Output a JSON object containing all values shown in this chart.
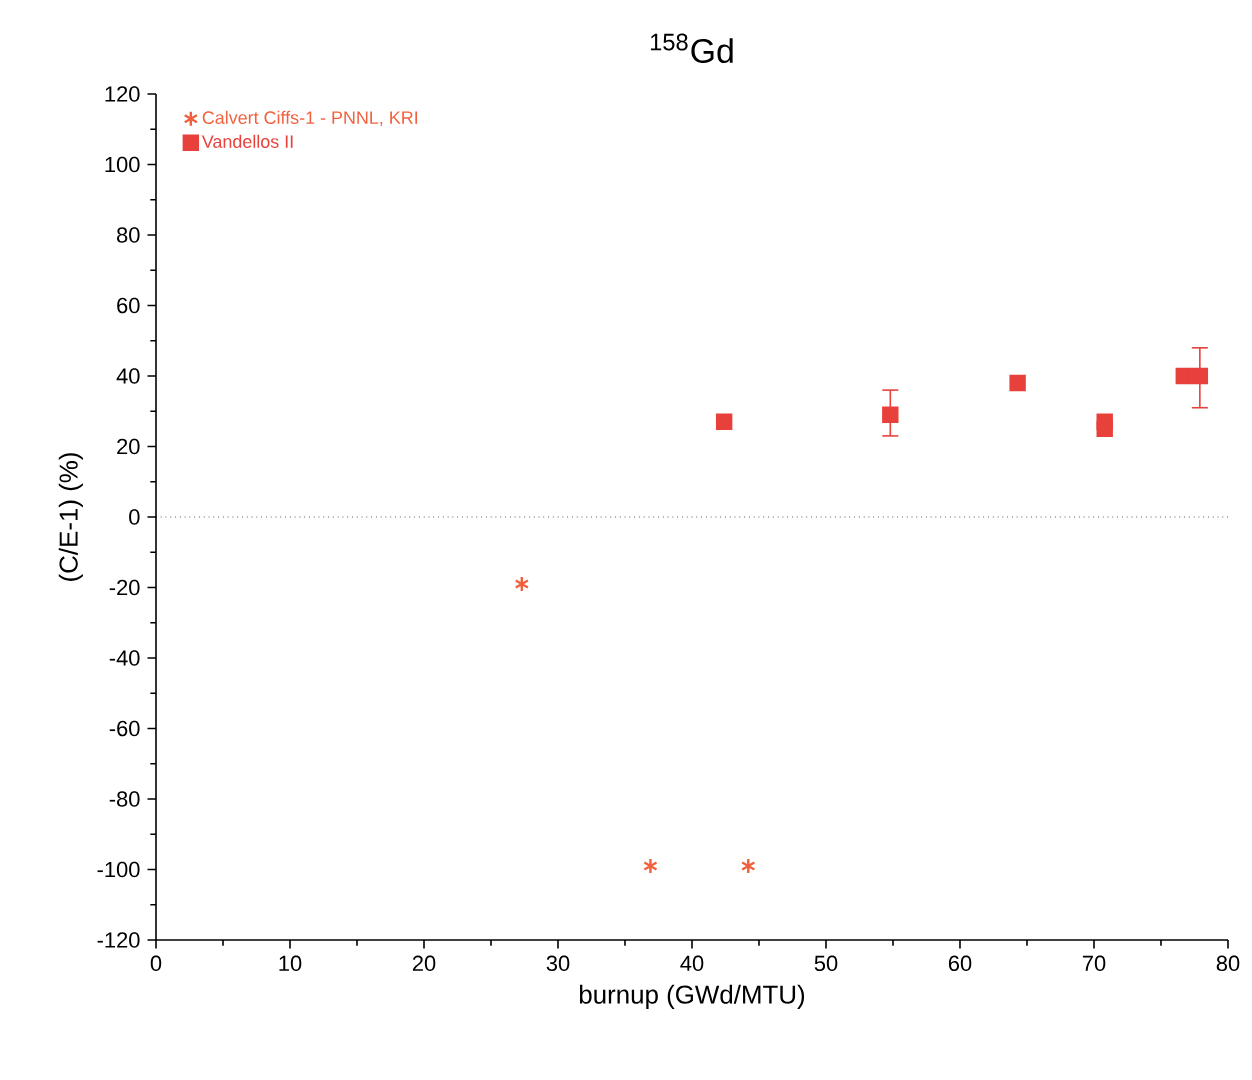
{
  "chart_data": {
    "type": "scatter",
    "title": "$^{158}$Gd",
    "xlabel": "burnup (GWd/MTU)",
    "ylabel": "(C/E-1) (%)",
    "xlim": [
      0,
      80
    ],
    "xticks": [
      0,
      10,
      20,
      30,
      40,
      50,
      60,
      70,
      80
    ],
    "ylim": [
      -120,
      120
    ],
    "yticks": [
      -120,
      -100,
      -80,
      -60,
      -40,
      -20,
      0,
      20,
      40,
      60,
      80,
      100,
      120
    ],
    "legend": "top left",
    "grid": false,
    "ref_lines": [
      {
        "axis": "y",
        "value": 0,
        "line_style": "dotted",
        "color": "#000000"
      }
    ],
    "series": [
      {
        "name": "Calvert Ciffs-1 - PNNL, KRI",
        "color": "#f0603c",
        "marker": "cross",
        "x": [
          27.3,
          36.9,
          44.2
        ],
        "values": [
          -19,
          -99,
          -99
        ]
      },
      {
        "name": "Vandellos II",
        "color": "#e8413c",
        "marker": "square",
        "x": [
          42.4,
          54.8,
          64.3,
          70.8,
          70.8,
          76.7,
          77.9
        ],
        "values": [
          27,
          29,
          38,
          27,
          25,
          40,
          40
        ],
        "errors": [
          null,
          [
            23,
            36
          ],
          null,
          null,
          null,
          null,
          [
            31,
            48
          ]
        ]
      }
    ]
  }
}
